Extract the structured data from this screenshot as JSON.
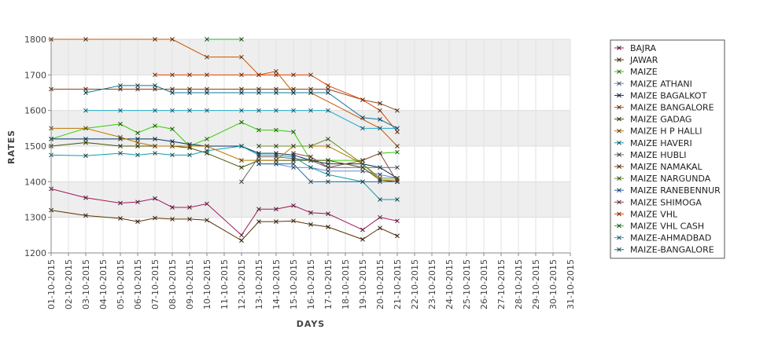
{
  "chart_data": {
    "type": "line",
    "title": "",
    "xlabel": "DAYS",
    "ylabel": "RATES",
    "ylim": [
      1200,
      1800
    ],
    "yticks": [
      1200,
      1300,
      1400,
      1500,
      1600,
      1700,
      1800
    ],
    "grid": true,
    "legend_position": "right",
    "categories": [
      "01-10-2015",
      "02-10-2015",
      "03-10-2015",
      "04-10-2015",
      "05-10-2015",
      "06-10-2015",
      "07-10-2015",
      "08-10-2015",
      "09-10-2015",
      "10-10-2015",
      "11-10-2015",
      "12-10-2015",
      "13-10-2015",
      "14-10-2015",
      "15-10-2015",
      "16-10-2015",
      "17-10-2015",
      "18-10-2015",
      "19-10-2015",
      "20-10-2015",
      "21-10-2015",
      "22-10-2015",
      "23-10-2015",
      "24-10-2015",
      "25-10-2015",
      "26-10-2015",
      "27-10-2015",
      "28-10-2015",
      "29-10-2015",
      "30-10-2015",
      "31-10-2015"
    ],
    "series": [
      {
        "name": "BAJRA",
        "color": "#a0185a",
        "values": [
          1380,
          null,
          1355,
          null,
          1340,
          1343,
          1353,
          1328,
          1328,
          1338,
          null,
          1250,
          1323,
          1323,
          1333,
          1313,
          1310,
          null,
          1265,
          1300,
          1290,
          null,
          null,
          null,
          null,
          null,
          null,
          null,
          null,
          null,
          null
        ]
      },
      {
        "name": "JAWAR",
        "color": "#5a3200",
        "values": [
          1320,
          null,
          1305,
          null,
          1297,
          1288,
          1298,
          1295,
          1295,
          1292,
          null,
          1235,
          1288,
          1288,
          1290,
          1280,
          1273,
          null,
          1238,
          1270,
          1248,
          null,
          null,
          null,
          null,
          null,
          null,
          null,
          null,
          null,
          null
        ]
      },
      {
        "name": "MAIZE",
        "color": "#33cc00",
        "values": [
          1520,
          null,
          1550,
          null,
          1562,
          1537,
          1557,
          1548,
          1500,
          1520,
          null,
          1567,
          1545,
          1545,
          1540,
          1460,
          1460,
          null,
          1460,
          1480,
          1483,
          null,
          null,
          null,
          null,
          null,
          null,
          null,
          null,
          null,
          null
        ]
      },
      {
        "name": "MAIZE ATHANI",
        "color": "#6688cc",
        "values": [
          null,
          null,
          null,
          null,
          null,
          null,
          null,
          null,
          null,
          null,
          null,
          null,
          1450,
          1450,
          1440,
          1440,
          1430,
          null,
          1430,
          1420,
          1410,
          null,
          null,
          null,
          null,
          null,
          null,
          null,
          null,
          null,
          null
        ]
      },
      {
        "name": "MAIZE BAGALKOT",
        "color": "#003366",
        "values": [
          1520,
          null,
          1520,
          null,
          1520,
          1520,
          1520,
          1513,
          1505,
          1500,
          null,
          1500,
          1480,
          1480,
          1475,
          1460,
          1450,
          null,
          1450,
          1440,
          1410,
          null,
          null,
          null,
          null,
          null,
          null,
          null,
          null,
          null,
          null
        ]
      },
      {
        "name": "MAIZE BANGALORE",
        "color": "#cc5500",
        "values": [
          1800,
          null,
          1800,
          null,
          null,
          null,
          1800,
          1800,
          null,
          1750,
          null,
          1750,
          1700,
          1710,
          1650,
          1650,
          null,
          null,
          null,
          1550,
          1500,
          null,
          null,
          null,
          null,
          null,
          null,
          null,
          null,
          null,
          null
        ]
      },
      {
        "name": "MAIZE GADAG",
        "color": "#445500",
        "values": [
          1500,
          null,
          1510,
          null,
          1500,
          1500,
          1500,
          1500,
          1495,
          1480,
          null,
          1440,
          1460,
          1460,
          1460,
          1460,
          1460,
          null,
          1440,
          1405,
          1400,
          null,
          null,
          null,
          null,
          null,
          null,
          null,
          null,
          null,
          null
        ]
      },
      {
        "name": "MAIZE H P HALLI",
        "color": "#bb7700",
        "values": [
          1550,
          null,
          1550,
          null,
          1525,
          1510,
          1500,
          1500,
          1500,
          1500,
          null,
          1460,
          1460,
          1460,
          1500,
          1500,
          1500,
          null,
          1450,
          1405,
          1405,
          null,
          null,
          null,
          null,
          null,
          null,
          null,
          null,
          null,
          null
        ]
      },
      {
        "name": "MAIZE HAVERI",
        "color": "#1199aa",
        "values": [
          1475,
          null,
          1473,
          null,
          1480,
          1475,
          1480,
          1475,
          1475,
          1487,
          null,
          1500,
          1475,
          1475,
          1470,
          1440,
          1420,
          null,
          1400,
          1350,
          1350,
          null,
          null,
          null,
          null,
          null,
          null,
          null,
          null,
          null,
          null
        ]
      },
      {
        "name": "MAIZE HUBLI",
        "color": "#666666",
        "values": [
          null,
          null,
          null,
          null,
          null,
          null,
          null,
          null,
          null,
          null,
          null,
          1400,
          1470,
          1470,
          1465,
          1460,
          1440,
          null,
          1440,
          1440,
          1440,
          null,
          null,
          null,
          null,
          null,
          null,
          null,
          null,
          null,
          null
        ]
      },
      {
        "name": "MAIZE NAMAKAL",
        "color": "#8b4513",
        "values": [
          1660,
          null,
          1660,
          null,
          1660,
          1660,
          1660,
          1660,
          1660,
          1660,
          null,
          1660,
          1660,
          1660,
          1660,
          1660,
          1660,
          null,
          1630,
          1620,
          1600,
          null,
          null,
          null,
          null,
          null,
          null,
          null,
          null,
          null,
          null
        ]
      },
      {
        "name": "MAIZE NARGUNDA",
        "color": "#6b8e23",
        "values": [
          null,
          null,
          null,
          null,
          null,
          null,
          null,
          null,
          null,
          null,
          null,
          null,
          1500,
          1500,
          1500,
          1500,
          1520,
          null,
          1450,
          1410,
          1410,
          null,
          null,
          null,
          null,
          null,
          null,
          null,
          null,
          null,
          null
        ]
      },
      {
        "name": "MAIZE RANEBENNUR",
        "color": "#2266aa",
        "values": [
          null,
          null,
          null,
          null,
          null,
          null,
          null,
          null,
          null,
          null,
          null,
          null,
          1450,
          1450,
          1450,
          1400,
          1400,
          null,
          1400,
          1400,
          1400,
          null,
          null,
          null,
          null,
          null,
          null,
          null,
          null,
          null,
          null
        ]
      },
      {
        "name": "MAIZE SHIMOGA",
        "color": "#884444",
        "values": [
          null,
          null,
          null,
          null,
          null,
          null,
          null,
          null,
          null,
          null,
          null,
          null,
          null,
          null,
          1480,
          1470,
          1440,
          null,
          1460,
          1480,
          1400,
          null,
          null,
          null,
          null,
          null,
          null,
          null,
          null,
          null,
          null
        ]
      },
      {
        "name": "MAIZE VHL",
        "color": "#dd4400",
        "values": [
          null,
          null,
          null,
          null,
          null,
          null,
          1700,
          1700,
          1700,
          1700,
          null,
          1700,
          1700,
          1700,
          1700,
          1700,
          1670,
          null,
          1630,
          1600,
          1540,
          null,
          null,
          null,
          null,
          null,
          null,
          null,
          null,
          null,
          null
        ]
      },
      {
        "name": "MAIZE VHL CASH",
        "color": "#22bb22",
        "values": [
          null,
          null,
          null,
          null,
          null,
          null,
          null,
          null,
          null,
          1800,
          null,
          1800,
          null,
          null,
          null,
          null,
          null,
          null,
          null,
          null,
          null,
          null,
          null,
          null,
          null,
          null,
          null,
          null,
          null,
          null,
          null
        ]
      },
      {
        "name": "MAIZE-AHMADBAD",
        "color": "#22aacc",
        "values": [
          null,
          null,
          1600,
          null,
          1600,
          null,
          1600,
          1600,
          1600,
          1600,
          null,
          1600,
          1600,
          1600,
          1600,
          1600,
          1600,
          null,
          1550,
          1550,
          1550,
          null,
          null,
          null,
          null,
          null,
          null,
          null,
          null,
          null,
          null
        ]
      },
      {
        "name": "MAIZE-BANGALORE",
        "color": "#117799",
        "values": [
          null,
          null,
          1650,
          null,
          1670,
          1670,
          1670,
          1650,
          1650,
          1650,
          null,
          1650,
          1650,
          1650,
          1650,
          1650,
          1650,
          null,
          1580,
          1575,
          1550,
          null,
          null,
          null,
          null,
          null,
          null,
          null,
          null,
          null,
          null
        ]
      }
    ]
  }
}
